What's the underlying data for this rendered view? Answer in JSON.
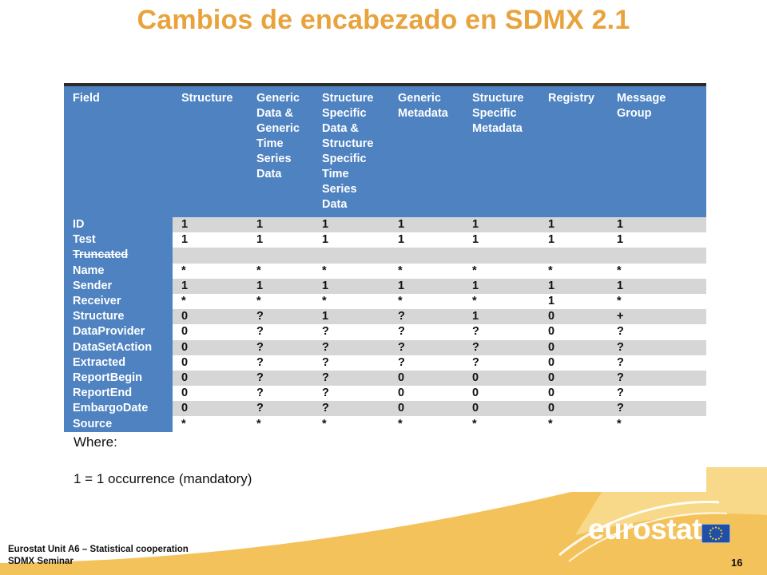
{
  "slide": {
    "title": "Cambios de encabezado en SDMX 2.1",
    "page_number": "16"
  },
  "table": {
    "headers": [
      [
        "Field"
      ],
      [
        "Structure"
      ],
      [
        "Generic",
        "Data &",
        "Generic",
        "Time",
        "Series",
        "Data"
      ],
      [
        "Structure",
        "Specific",
        "Data &",
        "Structure",
        "Specific",
        "Time",
        "Series",
        "Data"
      ],
      [
        "Generic",
        "Metadata"
      ],
      [
        "Structure",
        "Specific",
        "Metadata"
      ],
      [
        "Registry"
      ],
      [
        "Message",
        "Group"
      ]
    ],
    "rows": [
      {
        "field": "ID",
        "values": [
          "1",
          "1",
          "1",
          "1",
          "1",
          "1",
          "1"
        ]
      },
      {
        "field": "Test",
        "values": [
          "1",
          "1",
          "1",
          "1",
          "1",
          "1",
          "1"
        ]
      },
      {
        "field": "Truncated",
        "values": [
          "",
          "",
          "",
          "",
          "",
          "",
          ""
        ]
      },
      {
        "field": "Name",
        "values": [
          "*",
          "*",
          "*",
          "*",
          "*",
          "*",
          "*"
        ]
      },
      {
        "field": "Sender",
        "values": [
          "1",
          "1",
          "1",
          "1",
          "1",
          "1",
          "1"
        ]
      },
      {
        "field": "Receiver",
        "values": [
          "*",
          "*",
          "*",
          "*",
          "*",
          "1",
          "*"
        ]
      },
      {
        "field": "Structure",
        "values": [
          "0",
          "?",
          "1",
          "?",
          "1",
          "0",
          "+"
        ]
      },
      {
        "field": "DataProvider",
        "values": [
          "0",
          "?",
          "?",
          "?",
          "?",
          "0",
          "?"
        ]
      },
      {
        "field": "DataSetAction",
        "values": [
          "0",
          "?",
          "?",
          "?",
          "?",
          "0",
          "?"
        ]
      },
      {
        "field": "Extracted",
        "values": [
          "0",
          "?",
          "?",
          "?",
          "?",
          "0",
          "?"
        ]
      },
      {
        "field": "ReportBegin",
        "values": [
          "0",
          "?",
          "?",
          "0",
          "0",
          "0",
          "?"
        ]
      },
      {
        "field": "ReportEnd",
        "values": [
          "0",
          "?",
          "?",
          "0",
          "0",
          "0",
          "?"
        ]
      },
      {
        "field": "EmbargoDate",
        "values": [
          "0",
          "?",
          "?",
          "0",
          "0",
          "0",
          "?"
        ]
      },
      {
        "field": "Source",
        "values": [
          "*",
          "*",
          "*",
          "*",
          "*",
          "*",
          "*"
        ]
      }
    ]
  },
  "legend": {
    "where_label": "Where:",
    "item_1": "1 = 1 occurrence (mandatory)"
  },
  "footer": {
    "org_line_1": "Eurostat Unit  A6 – Statistical cooperation",
    "org_line_2": "SDMX Seminar",
    "logo_text": "eurostat"
  },
  "colors": {
    "title": "#E8A33D",
    "table_header": "#4E82C1",
    "row_shade": "#D6D6D6",
    "footer_band": "#F4C25A",
    "eu_flag_blue": "#1F4FA8",
    "eu_flag_stars": "#F7D417"
  },
  "icons": {
    "logo": "eurostat-logo",
    "flag": "eu-flag-icon"
  }
}
